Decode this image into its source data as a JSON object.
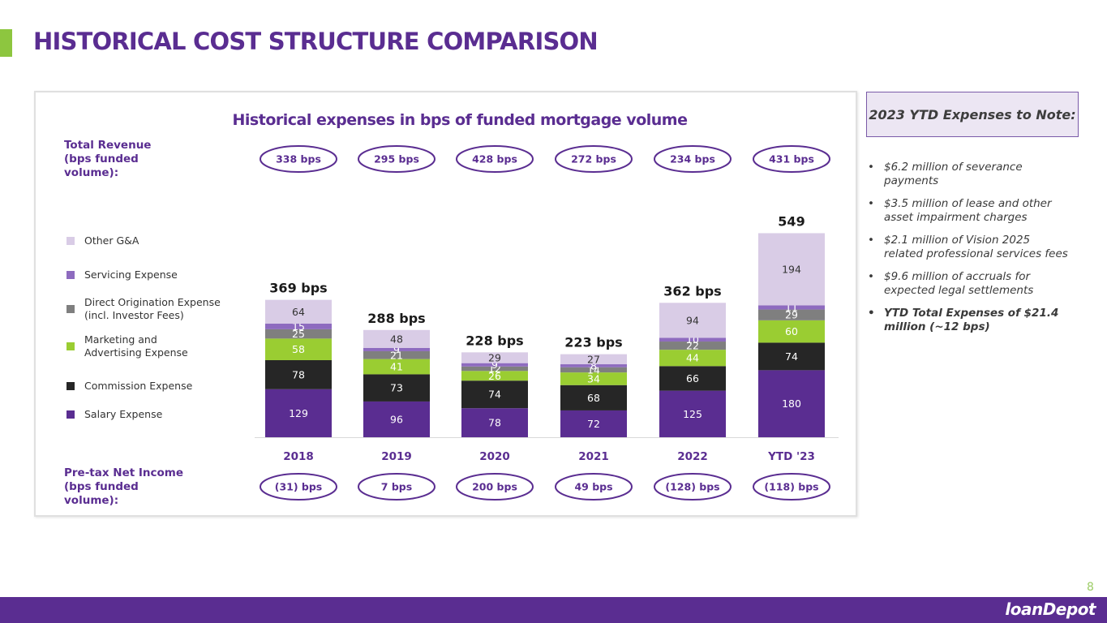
{
  "page": {
    "title": "HISTORICAL COST STRUCTURE COMPARISON",
    "page_number": "8",
    "logo_text": "loanDepot",
    "accent_color": "#8dc63f",
    "brand_color": "#5a2d91"
  },
  "notes": {
    "title": "2023 YTD Expenses to Note:",
    "items": [
      "$6.2 million of severance payments",
      "$3.5 million of lease and other asset impairment charges",
      "$2.1 million of Vision 2025 related professional services fees",
      "$9.6 million of accruals for expected legal settlements",
      "YTD Total Expenses of $21.4 million (~12 bps)"
    ]
  },
  "chart_data": {
    "type": "bar",
    "stacked": true,
    "title": "Historical expenses in bps of funded mortgage volume",
    "categories": [
      "2018",
      "2019",
      "2020",
      "2021",
      "2022",
      "YTD '23"
    ],
    "series": [
      {
        "name": "Salary Expense",
        "color": "#5a2d91",
        "label_color": "#ffffff",
        "values": [
          129,
          96,
          78,
          72,
          125,
          180
        ]
      },
      {
        "name": "Commission Expense",
        "color": "#262626",
        "label_color": "#ffffff",
        "values": [
          78,
          73,
          74,
          68,
          66,
          74
        ]
      },
      {
        "name": "Marketing and Advertising Expense",
        "color": "#9acd32",
        "label_color": "#ffffff",
        "values": [
          58,
          41,
          26,
          34,
          44,
          60
        ]
      },
      {
        "name": "Direct Origination Expense (incl. Investor Fees)",
        "color": "#7f7f7f",
        "label_color": "#ffffff",
        "values": [
          25,
          21,
          12,
          14,
          22,
          29
        ]
      },
      {
        "name": "Servicing Expense",
        "color": "#8e6bbf",
        "label_color": "#ffffff",
        "values": [
          15,
          9,
          9,
          8,
          10,
          11
        ]
      },
      {
        "name": "Other G&A",
        "color": "#d9cce6",
        "label_color": "#333333",
        "values": [
          64,
          48,
          29,
          27,
          94,
          194
        ]
      }
    ],
    "totals": [
      "369 bps",
      "288 bps",
      "228 bps",
      "223 bps",
      "362 bps",
      "549"
    ],
    "legend_order": [
      "Other G&A",
      "Servicing Expense",
      "Direct Origination Expense (incl. Investor Fees)",
      "Marketing and Advertising Expense",
      "Commission Expense",
      "Salary Expense"
    ],
    "total_revenue": {
      "label_lines": [
        "Total Revenue",
        "(bps funded",
        "volume):"
      ],
      "values": [
        "338 bps",
        "295 bps",
        "428 bps",
        "272 bps",
        "234 bps",
        "431 bps"
      ]
    },
    "pretax_net_income": {
      "label_lines": [
        "Pre-tax Net Income",
        "(bps funded",
        "volume):"
      ],
      "values": [
        "(31) bps",
        "7 bps",
        "200 bps",
        "49 bps",
        "(128) bps",
        "(118) bps"
      ]
    },
    "ylim": [
      0,
      549
    ],
    "xlabel": "",
    "ylabel": ""
  }
}
